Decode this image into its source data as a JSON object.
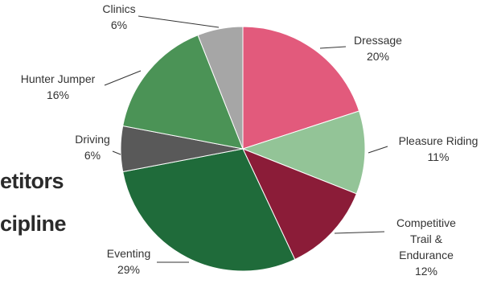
{
  "heading": {
    "line1": "etitors",
    "line2": "cipline"
  },
  "chart_data": {
    "type": "pie",
    "slices": [
      {
        "label": [
          "Dressage"
        ],
        "value": 20,
        "pct": "20%",
        "color": "#e25a7c"
      },
      {
        "label": [
          "Pleasure Riding"
        ],
        "value": 11,
        "pct": "11%",
        "color": "#93c497"
      },
      {
        "label": [
          "Competitive",
          "Trail &",
          "Endurance"
        ],
        "value": 12,
        "pct": "12%",
        "color": "#8b1c38"
      },
      {
        "label": [
          "Eventing"
        ],
        "value": 29,
        "pct": "29%",
        "color": "#1f6b3a"
      },
      {
        "label": [
          "Driving"
        ],
        "value": 6,
        "pct": "6%",
        "color": "#595959"
      },
      {
        "label": [
          "Hunter Jumper"
        ],
        "value": 16,
        "pct": "16%",
        "color": "#4b9356"
      },
      {
        "label": [
          "Clinics"
        ],
        "value": 6,
        "pct": "6%",
        "color": "#a6a6a6"
      }
    ]
  }
}
